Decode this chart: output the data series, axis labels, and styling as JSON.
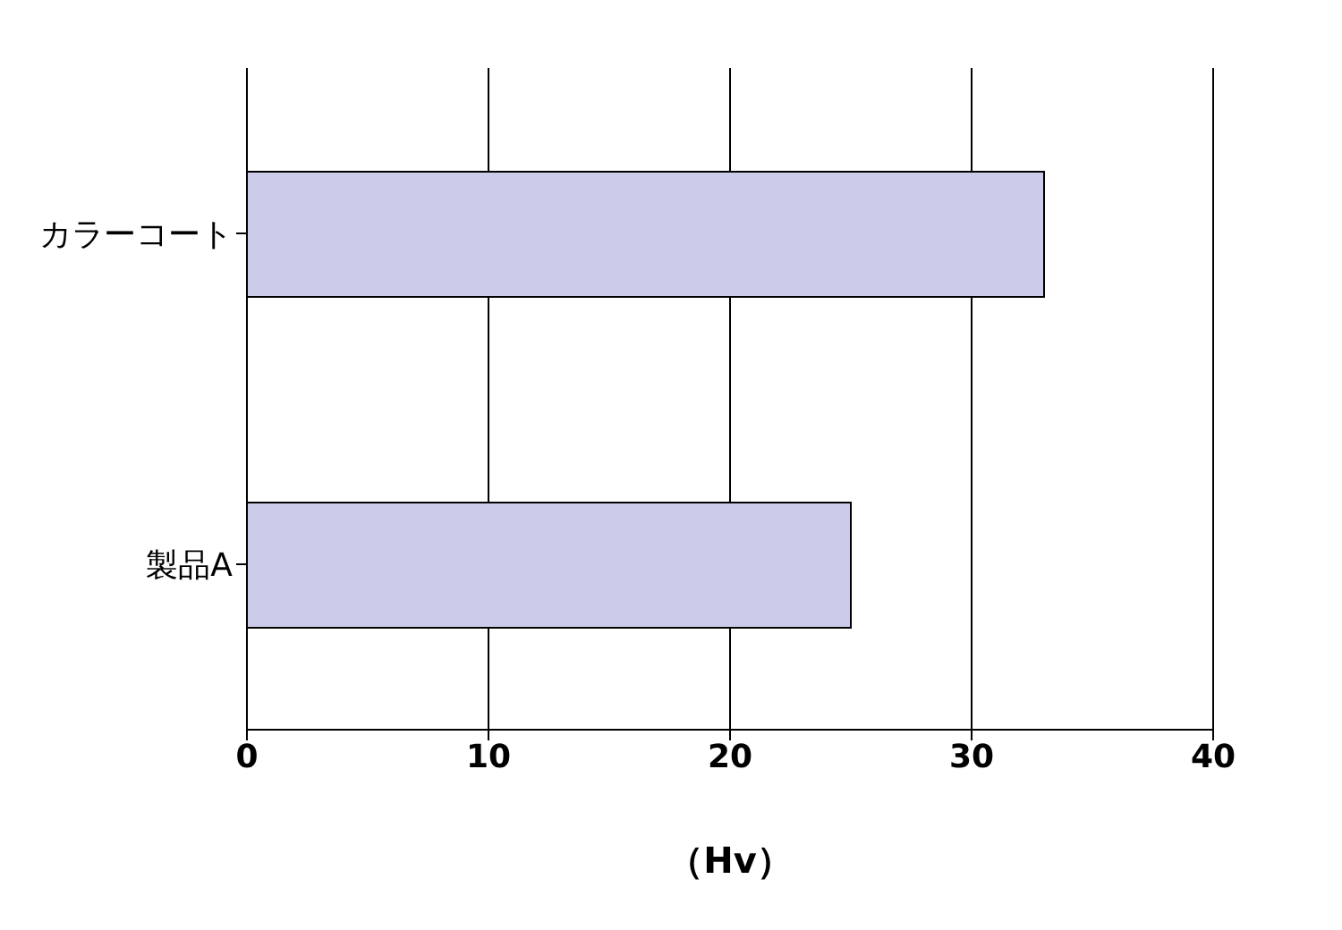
{
  "chart_data": {
    "type": "bar",
    "orientation": "horizontal",
    "categories": [
      "カラーコート",
      "製品A"
    ],
    "values": [
      33,
      25
    ],
    "color": "#ccccea",
    "xlim": [
      0,
      40
    ],
    "xticks": [
      0,
      10,
      20,
      30,
      40
    ],
    "grid": "x",
    "xlabel": "（Hv）"
  }
}
